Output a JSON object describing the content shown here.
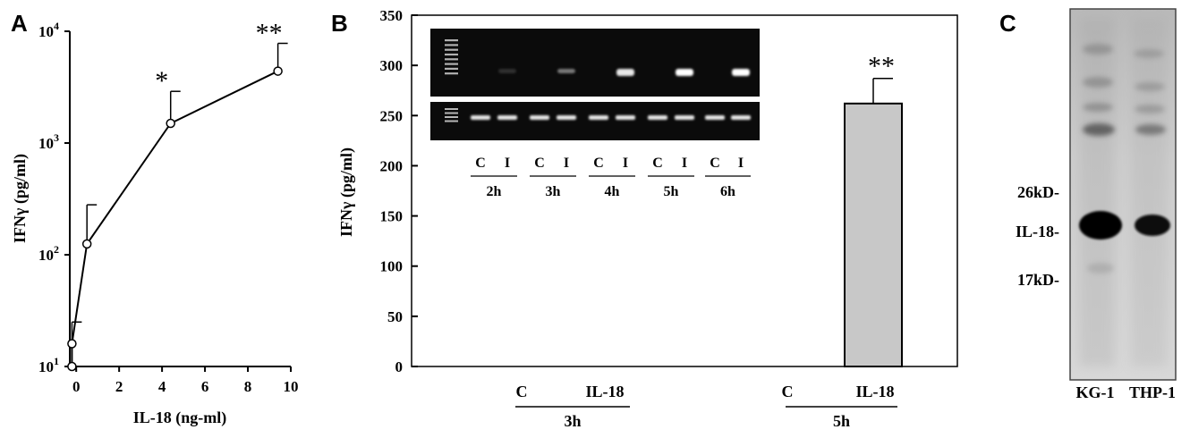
{
  "panels": {
    "A": {
      "letter": "A"
    },
    "B": {
      "letter": "B"
    },
    "C": {
      "letter": "C"
    }
  },
  "chart_data": [
    {
      "panel": "A",
      "type": "line",
      "xlabel": "IL-18 (ng-ml)",
      "ylabel": "IFNγ (pg/ml)",
      "yscale": "log",
      "xlim": [
        -0.3,
        10
      ],
      "ylim": [
        10,
        10000
      ],
      "xticks": [
        "0",
        "2",
        "4",
        "6",
        "8",
        "10"
      ],
      "xtick_values": [
        0,
        2,
        4,
        6,
        8,
        10
      ],
      "yticks": [
        {
          "value": 10,
          "base": "10",
          "exp": "1"
        },
        {
          "value": 100,
          "base": "10",
          "exp": "2"
        },
        {
          "value": 1000,
          "base": "10",
          "exp": "3"
        },
        {
          "value": 10000,
          "base": "10",
          "exp": "4"
        }
      ],
      "series": [
        {
          "x": [
            -0.2,
            -0.2,
            0.5,
            4.4,
            9.4
          ],
          "y": [
            10,
            16,
            125,
            1500,
            4400
          ],
          "err_upper": [
            null,
            25,
            280,
            2900,
            7800
          ],
          "significance": [
            "",
            "",
            "",
            "*",
            "**"
          ]
        }
      ],
      "grid": false
    },
    {
      "panel": "B",
      "type": "bar",
      "ylabel": "IFNγ (pg/ml)",
      "ylim": [
        0,
        350
      ],
      "yticks": [
        "0",
        "50",
        "100",
        "150",
        "200",
        "250",
        "300",
        "350"
      ],
      "ytick_values": [
        0,
        50,
        100,
        150,
        200,
        250,
        300,
        350
      ],
      "categories": [
        "C",
        "IL-18",
        "C",
        "IL-18"
      ],
      "groups": [
        "3h",
        "3h",
        "5h",
        "5h"
      ],
      "group_labels": [
        "3h",
        "5h"
      ],
      "values": [
        0,
        0,
        0,
        262
      ],
      "err_upper": [
        null,
        null,
        null,
        287
      ],
      "significance": [
        "",
        "",
        "",
        "**"
      ],
      "bar_color": "#c8c8c8",
      "inset": {
        "type": "gel",
        "lane_labels": [
          "C",
          "I",
          "C",
          "I",
          "C",
          "I",
          "C",
          "I",
          "C",
          "I"
        ],
        "time_labels": [
          "2h",
          "3h",
          "4h",
          "5h",
          "6h"
        ],
        "top_band_intensity": [
          0,
          0.15,
          0,
          0.45,
          0,
          0.9,
          0,
          1.0,
          0,
          1.0
        ],
        "bottom_band_intensity": [
          1,
          1,
          1,
          1,
          1,
          1,
          1,
          1,
          1,
          1
        ]
      },
      "grid": false
    },
    {
      "panel": "C",
      "type": "blot",
      "lane_labels": [
        "KG-1",
        "THP-1"
      ],
      "markers": [
        "26kD-",
        "IL-18-",
        "17kD-"
      ]
    }
  ]
}
